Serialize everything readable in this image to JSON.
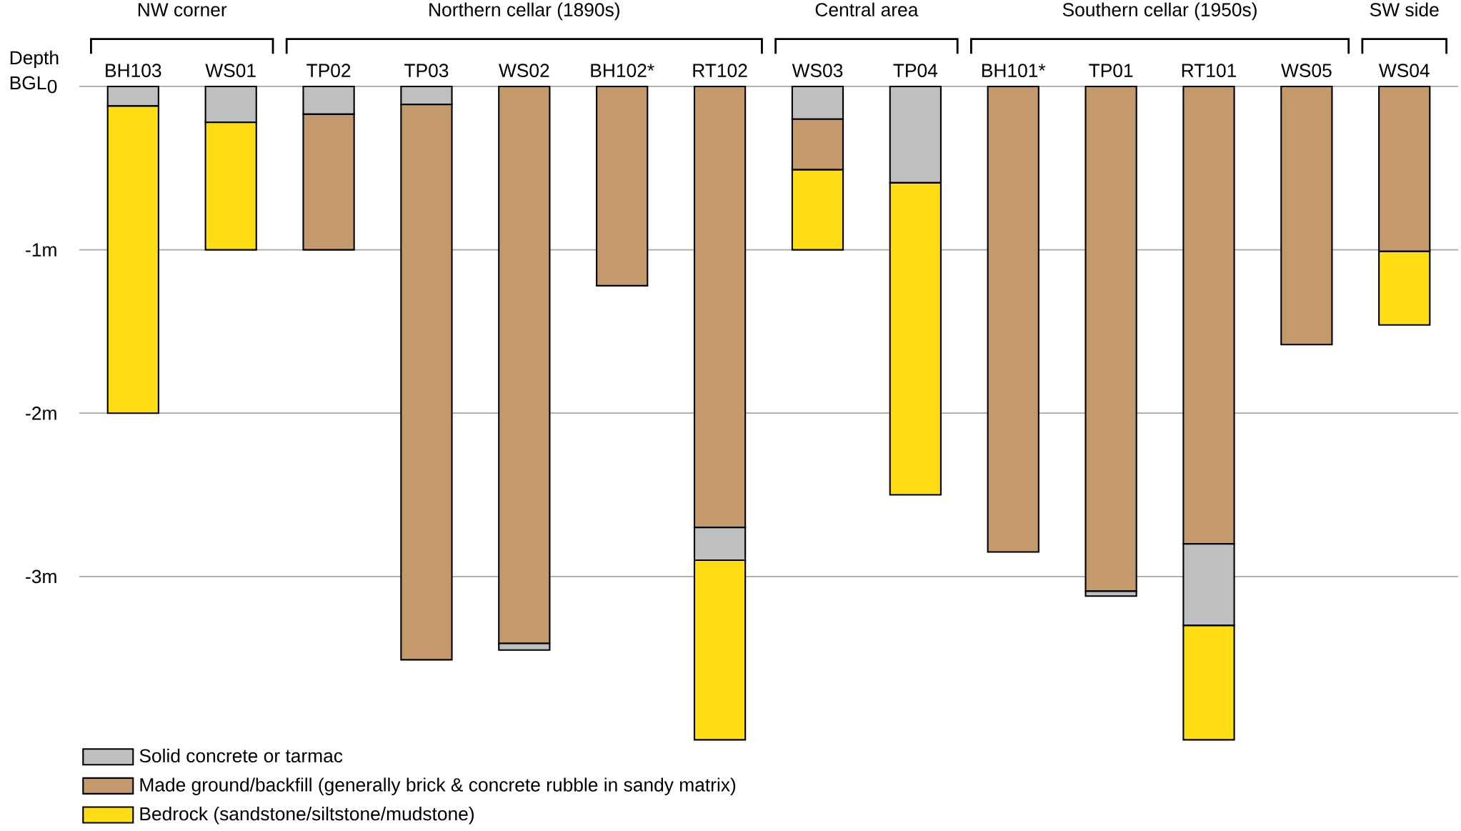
{
  "chart_data": {
    "type": "bar",
    "stacked": true,
    "ylabel": "Depth BGL",
    "categories": [
      "BH103",
      "WS01",
      "TP02",
      "TP03",
      "WS02",
      "BH102*",
      "RT102",
      "WS03",
      "TP04",
      "BH101*",
      "TP01",
      "RT101",
      "WS05",
      "WS04"
    ],
    "series": [
      {
        "name": "Solid concrete or tarmac",
        "color": "#bebfc1",
        "values": [
          -0.12,
          -0.22,
          -0.17,
          -0.11,
          null,
          null,
          null,
          -0.2,
          -0.59,
          null,
          null,
          null,
          null,
          null
        ]
      },
      {
        "name": "Made ground/backfill (generally brick & concrete rubble in sandy matrix)",
        "color": "#c49a6c",
        "values": [
          null,
          null,
          -0.83,
          -3.4,
          -3.41,
          -1.22,
          -2.7,
          -0.31,
          null,
          -2.85,
          -3.09,
          -2.8,
          -1.58,
          -1.01
        ]
      },
      {
        "color": "#bebfc1",
        "values": [
          null,
          null,
          null,
          null,
          -0.04,
          null,
          -0.2,
          null,
          null,
          null,
          -0.03,
          -0.5,
          null,
          null
        ]
      },
      {
        "name": "Bedrock (sandstone/siltstone/mudstone)",
        "color": "#ffdd15",
        "values": [
          -1.88,
          -0.78,
          null,
          null,
          null,
          null,
          -1.1,
          -0.49,
          -1.91,
          null,
          null,
          -0.7,
          null,
          -0.45
        ]
      }
    ],
    "ylim": [
      -4.02,
      0
    ],
    "yticks": [
      0,
      {
        "value": -1,
        "label": "-1m"
      },
      {
        "value": -2,
        "label": "-2m"
      },
      {
        "value": -3,
        "label": "-3m"
      }
    ],
    "grid": "y",
    "legend": "bottom left",
    "annotations": [
      "NW corner",
      "Northern cellar (1890s)",
      "Central area",
      "Southern cellar (1950s)",
      "SW side"
    ]
  }
}
